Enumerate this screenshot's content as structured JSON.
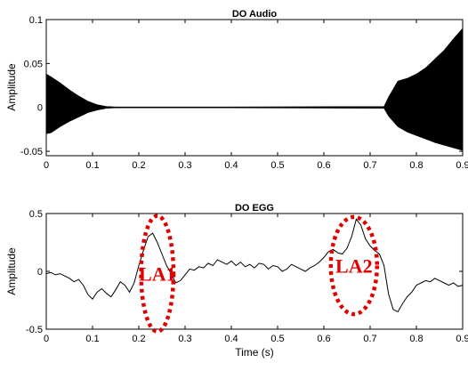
{
  "chart_data": [
    {
      "type": "line",
      "title": "DO Audio",
      "xlabel": "",
      "ylabel": "Amplitude",
      "xlim": [
        0,
        0.9
      ],
      "ylim": [
        -0.055,
        0.1
      ],
      "xticks": [
        0,
        0.1,
        0.2,
        0.3,
        0.4,
        0.5,
        0.6,
        0.7,
        0.8,
        0.9
      ],
      "xtick_labels": [
        "0",
        "0.1",
        "0.2",
        "0.3",
        "0.4",
        "0.5",
        "0.6",
        "0.7",
        "0.8",
        "0.9"
      ],
      "yticks": [
        -0.05,
        0,
        0.05,
        0.1
      ],
      "ytick_labels": [
        "-0.05",
        "0",
        "0.05",
        "0.1"
      ],
      "line_color": "#000000",
      "envelope": {
        "x": [
          0,
          0.01,
          0.03,
          0.05,
          0.07,
          0.09,
          0.11,
          0.13,
          0.15,
          0.4,
          0.73,
          0.74,
          0.76,
          0.78,
          0.8,
          0.82,
          0.84,
          0.86,
          0.88,
          0.9
        ],
        "upper": [
          0.038,
          0.035,
          0.028,
          0.02,
          0.013,
          0.007,
          0.003,
          0.001,
          0.0005,
          0.0005,
          0.001,
          0.012,
          0.03,
          0.033,
          0.038,
          0.045,
          0.055,
          0.065,
          0.078,
          0.09
        ],
        "lower": [
          -0.03,
          -0.029,
          -0.022,
          -0.016,
          -0.011,
          -0.006,
          -0.003,
          -0.001,
          -0.0005,
          -0.0005,
          -0.001,
          -0.01,
          -0.022,
          -0.028,
          -0.032,
          -0.036,
          -0.04,
          -0.043,
          -0.046,
          -0.049
        ]
      }
    },
    {
      "type": "line",
      "title": "DO EGG",
      "xlabel": "Time (s)",
      "ylabel": "Amplitude",
      "xlim": [
        0,
        0.9
      ],
      "ylim": [
        -0.5,
        0.5
      ],
      "xticks": [
        0,
        0.1,
        0.2,
        0.3,
        0.4,
        0.5,
        0.6,
        0.7,
        0.8,
        0.9
      ],
      "xtick_labels": [
        "0",
        "0.1",
        "0.2",
        "0.3",
        "0.4",
        "0.5",
        "0.6",
        "0.7",
        "0.8",
        "0.9"
      ],
      "yticks": [
        -0.5,
        0,
        0.5
      ],
      "ytick_labels": [
        "-0.5",
        "0",
        "0.5"
      ],
      "line_color": "#000000",
      "x": [
        0,
        0.01,
        0.02,
        0.03,
        0.04,
        0.05,
        0.06,
        0.07,
        0.08,
        0.09,
        0.1,
        0.11,
        0.12,
        0.13,
        0.14,
        0.15,
        0.16,
        0.17,
        0.18,
        0.19,
        0.2,
        0.21,
        0.22,
        0.23,
        0.24,
        0.25,
        0.26,
        0.27,
        0.28,
        0.29,
        0.3,
        0.31,
        0.32,
        0.33,
        0.34,
        0.35,
        0.36,
        0.37,
        0.38,
        0.39,
        0.4,
        0.41,
        0.42,
        0.43,
        0.44,
        0.45,
        0.46,
        0.47,
        0.48,
        0.49,
        0.5,
        0.51,
        0.52,
        0.53,
        0.54,
        0.55,
        0.56,
        0.57,
        0.58,
        0.59,
        0.6,
        0.61,
        0.62,
        0.63,
        0.64,
        0.65,
        0.66,
        0.67,
        0.68,
        0.69,
        0.7,
        0.71,
        0.72,
        0.73,
        0.74,
        0.75,
        0.76,
        0.77,
        0.78,
        0.79,
        0.8,
        0.81,
        0.82,
        0.83,
        0.84,
        0.85,
        0.86,
        0.87,
        0.88,
        0.89,
        0.9
      ],
      "y": [
        -0.02,
        -0.01,
        -0.03,
        -0.02,
        -0.04,
        -0.06,
        -0.09,
        -0.07,
        -0.12,
        -0.2,
        -0.24,
        -0.18,
        -0.15,
        -0.19,
        -0.22,
        -0.16,
        -0.09,
        -0.12,
        -0.18,
        -0.1,
        0.05,
        0.18,
        0.3,
        0.33,
        0.25,
        0.15,
        0.05,
        -0.02,
        -0.1,
        -0.08,
        -0.03,
        0.02,
        0.01,
        0.04,
        0.03,
        0.07,
        0.05,
        0.1,
        0.08,
        0.06,
        0.09,
        0.05,
        0.08,
        0.04,
        0.06,
        0.03,
        0.07,
        0.06,
        0.02,
        0.05,
        0.04,
        0.0,
        0.02,
        0.06,
        0.04,
        0.02,
        0.0,
        0.03,
        0.05,
        0.08,
        0.12,
        0.17,
        0.19,
        0.16,
        0.15,
        0.2,
        0.3,
        0.45,
        0.4,
        0.28,
        0.22,
        0.18,
        0.15,
        0.05,
        -0.2,
        -0.33,
        -0.35,
        -0.28,
        -0.22,
        -0.18,
        -0.12,
        -0.1,
        -0.08,
        -0.09,
        -0.06,
        -0.08,
        -0.1,
        -0.12,
        -0.1,
        -0.13,
        -0.12
      ],
      "annotations": [
        {
          "label": "LA1",
          "x": 0.24,
          "y": -0.02,
          "rx": 0.035,
          "ry": 0.5
        },
        {
          "label": "LA2",
          "x": 0.665,
          "y": 0.05,
          "rx": 0.05,
          "ry": 0.42
        }
      ],
      "annotation_color": "#e00000"
    }
  ]
}
